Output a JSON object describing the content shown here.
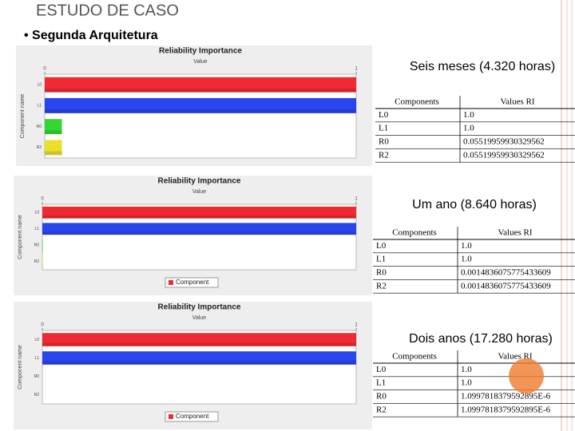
{
  "header": {
    "title": "ESTUDO DE CASO",
    "subtitle": "• Segunda Arquitetura"
  },
  "sections": [
    {
      "caption": "Seis meses (4.320 horas)",
      "chart": {
        "type": "bar",
        "title": "Reliability Importance",
        "x_label": "Value",
        "y_label": "Component name",
        "categories": [
          "L0",
          "L1",
          "R0",
          "R2"
        ],
        "values": [
          1.0,
          1.0,
          0.05519959930329562,
          0.05519959930329562
        ],
        "colors": [
          "#f02a33",
          "#2a44ee",
          "#33d633",
          "#e8e02a"
        ],
        "xlim": [
          0,
          1
        ],
        "xticks": [
          0,
          1
        ]
      },
      "table": {
        "columns": [
          "Components",
          "Values RI"
        ],
        "rows": [
          [
            "L0",
            "1.0"
          ],
          [
            "L1",
            "1.0"
          ],
          [
            "R0",
            "0.05519959930329562"
          ],
          [
            "R2",
            "0.05519959930329562"
          ]
        ]
      }
    },
    {
      "caption": "Um ano (8.640 horas)",
      "chart": {
        "type": "bar",
        "title": "Reliability Importance",
        "x_label": "Value",
        "y_label": "Component name",
        "categories": [
          "L0",
          "L1",
          "R0",
          "R2"
        ],
        "values": [
          1.0,
          1.0,
          0.0014836075775433609,
          0.0014836075775433609
        ],
        "colors": [
          "#f02a33",
          "#2a44ee",
          "#33d633",
          "#e8e02a"
        ],
        "xlim": [
          0,
          1
        ],
        "xticks": [
          0,
          1
        ],
        "legend": "Component"
      },
      "table": {
        "columns": [
          "Components",
          "Values RI"
        ],
        "rows": [
          [
            "L0",
            "1.0"
          ],
          [
            "L1",
            "1.0"
          ],
          [
            "R0",
            "0.0014836075775433609"
          ],
          [
            "R2",
            "0.0014836075775433609"
          ]
        ]
      }
    },
    {
      "caption": "Dois anos (17.280 horas)",
      "chart": {
        "type": "bar",
        "title": "Reliability Importance",
        "x_label": "Value",
        "y_label": "Component name",
        "categories": [
          "L0",
          "L1",
          "R0",
          "R2"
        ],
        "values": [
          1.0,
          1.0,
          1.0997818379592895e-06,
          1.0997818379592895e-06
        ],
        "colors": [
          "#f02a33",
          "#2a44ee",
          "#33d633",
          "#e8e02a"
        ],
        "xlim": [
          0,
          1
        ],
        "xticks": [
          0,
          1
        ],
        "legend": "Component"
      },
      "table": {
        "columns": [
          "Components",
          "Values RI"
        ],
        "rows": [
          [
            "L0",
            "1.0"
          ],
          [
            "L1",
            "1.0"
          ],
          [
            "R0",
            "1.0997818379592895E-6"
          ],
          [
            "R2",
            "1.0997818379592895E-6"
          ]
        ]
      }
    }
  ]
}
